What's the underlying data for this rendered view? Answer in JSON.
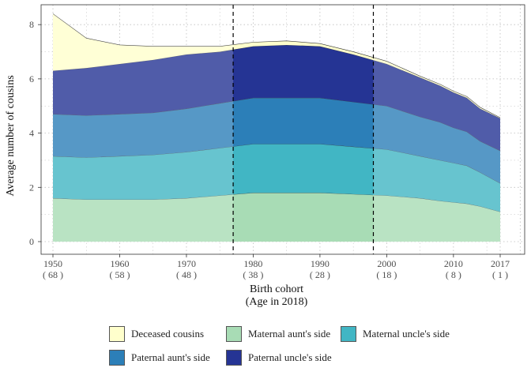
{
  "chart_data": {
    "type": "area",
    "stacked": true,
    "xlabel": "Birth cohort",
    "xlabel_sub": "(Age in 2018)",
    "ylabel": "Average number of cousins",
    "xlim": [
      1950,
      2017
    ],
    "ylim": [
      0,
      8.5
    ],
    "x_ticks": [
      {
        "value": 1950,
        "label": "1950",
        "sub": "( 68 )"
      },
      {
        "value": 1960,
        "label": "1960",
        "sub": "( 58 )"
      },
      {
        "value": 1970,
        "label": "1970",
        "sub": "( 48 )"
      },
      {
        "value": 1980,
        "label": "1980",
        "sub": "( 38 )"
      },
      {
        "value": 1990,
        "label": "1990",
        "sub": "( 28 )"
      },
      {
        "value": 2000,
        "label": "2000",
        "sub": "( 18 )"
      },
      {
        "value": 2010,
        "label": "2010",
        "sub": "( 8 )"
      },
      {
        "value": 2017,
        "label": "2017",
        "sub": "( 1 )"
      }
    ],
    "y_ticks": [
      0,
      2,
      4,
      6,
      8
    ],
    "vlines": [
      1977,
      1998
    ],
    "grid": true,
    "legend_position": "bottom",
    "x": [
      1950,
      1955,
      1960,
      1965,
      1970,
      1975,
      1980,
      1985,
      1990,
      1995,
      2000,
      2005,
      2008,
      2010,
      2012,
      2014,
      2017
    ],
    "series": [
      {
        "name": "Maternal aunt's side",
        "color": "#a8dcb5",
        "values": [
          1.6,
          1.55,
          1.55,
          1.55,
          1.6,
          1.7,
          1.8,
          1.8,
          1.8,
          1.75,
          1.7,
          1.6,
          1.5,
          1.45,
          1.4,
          1.3,
          1.1
        ]
      },
      {
        "name": "Maternal uncle's side",
        "color": "#41b6c4",
        "values": [
          1.55,
          1.55,
          1.6,
          1.65,
          1.7,
          1.75,
          1.8,
          1.8,
          1.8,
          1.75,
          1.7,
          1.55,
          1.5,
          1.45,
          1.4,
          1.25,
          1.05
        ]
      },
      {
        "name": "Paternal aunt's side",
        "color": "#2c7fb8",
        "values": [
          1.55,
          1.55,
          1.55,
          1.55,
          1.6,
          1.65,
          1.7,
          1.7,
          1.7,
          1.65,
          1.6,
          1.45,
          1.4,
          1.3,
          1.25,
          1.15,
          1.2
        ]
      },
      {
        "name": "Paternal uncle's side",
        "color": "#253494",
        "values": [
          1.6,
          1.75,
          1.85,
          1.95,
          2.0,
          1.9,
          1.9,
          1.95,
          1.9,
          1.75,
          1.55,
          1.45,
          1.35,
          1.3,
          1.25,
          1.2,
          1.2
        ]
      },
      {
        "name": "Deceased cousins",
        "color": "#ffffcc",
        "values": [
          2.1,
          1.1,
          0.7,
          0.5,
          0.3,
          0.2,
          0.15,
          0.15,
          0.1,
          0.1,
          0.1,
          0.05,
          0.05,
          0.05,
          0.05,
          0.05,
          0.02
        ]
      }
    ],
    "legend_order": [
      "Deceased cousins",
      "Maternal aunt's side",
      "Maternal uncle's side",
      "Paternal aunt's side",
      "Paternal uncle's side"
    ]
  }
}
